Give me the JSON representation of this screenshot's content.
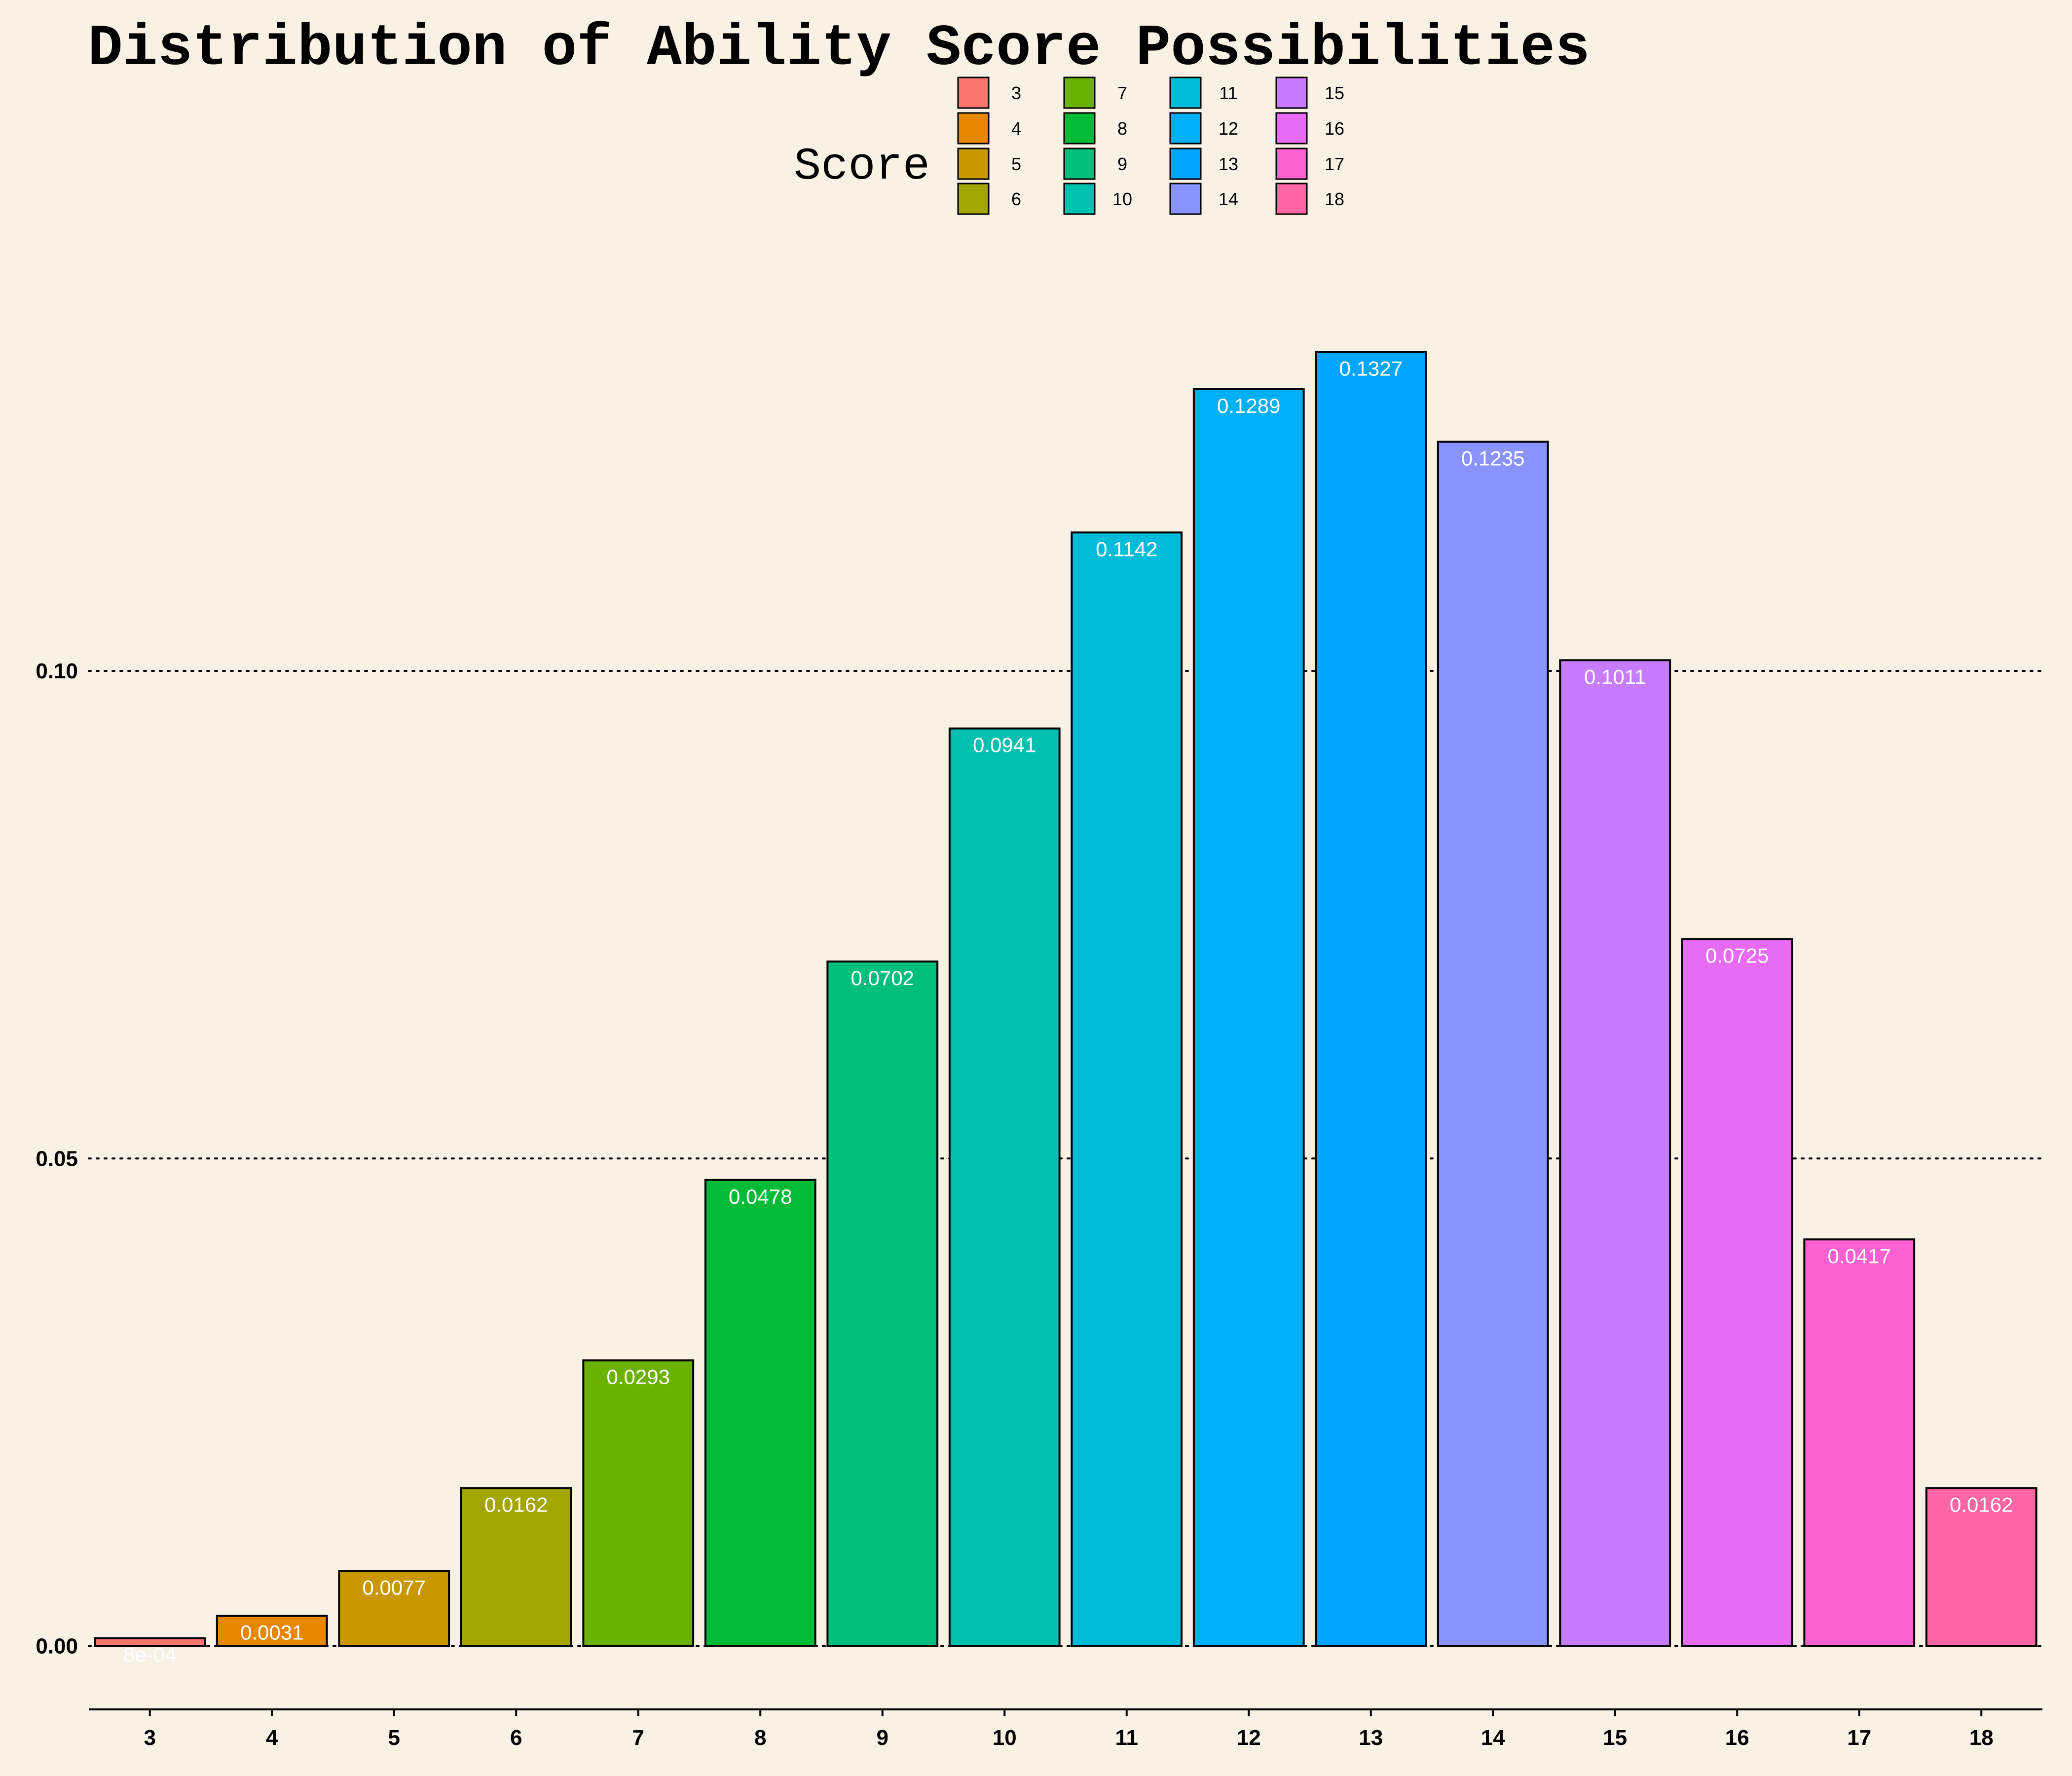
{
  "chart_data": {
    "type": "bar",
    "title": "Distribution of Ability Score Possibilities",
    "xlabel": "",
    "ylabel": "",
    "legend_title": "Score",
    "legend_position": "top",
    "grid": "horizontal dotted major lines",
    "ylim": [
      -0.0065,
      0.1425
    ],
    "yticks": [
      0.0,
      0.05,
      0.1
    ],
    "ytick_labels": [
      "0.00",
      "0.05",
      "0.10"
    ],
    "categories": [
      "3",
      "4",
      "5",
      "6",
      "7",
      "8",
      "9",
      "10",
      "11",
      "12",
      "13",
      "14",
      "15",
      "16",
      "17",
      "18"
    ],
    "values": [
      0.0008,
      0.0031,
      0.0077,
      0.0162,
      0.0293,
      0.0478,
      0.0702,
      0.0941,
      0.1142,
      0.1289,
      0.1327,
      0.1235,
      0.1011,
      0.0725,
      0.0417,
      0.0162
    ],
    "data_labels": [
      "8e-04",
      "0.0031",
      "0.0077",
      "0.0162",
      "0.0293",
      "0.0478",
      "0.0702",
      "0.0941",
      "0.1142",
      "0.1289",
      "0.1327",
      "0.1235",
      "0.1011",
      "0.0725",
      "0.0417",
      "0.0162"
    ],
    "colors": [
      "#F8766D",
      "#E58700",
      "#C99800",
      "#A3A500",
      "#6BB100",
      "#00BA38",
      "#00BF7D",
      "#00C0AF",
      "#00BCD8",
      "#00B0F6",
      "#00A5FF",
      "#8B93FF",
      "#C77CFF",
      "#E76BF3",
      "#FD61D1",
      "#FF67A4"
    ]
  }
}
